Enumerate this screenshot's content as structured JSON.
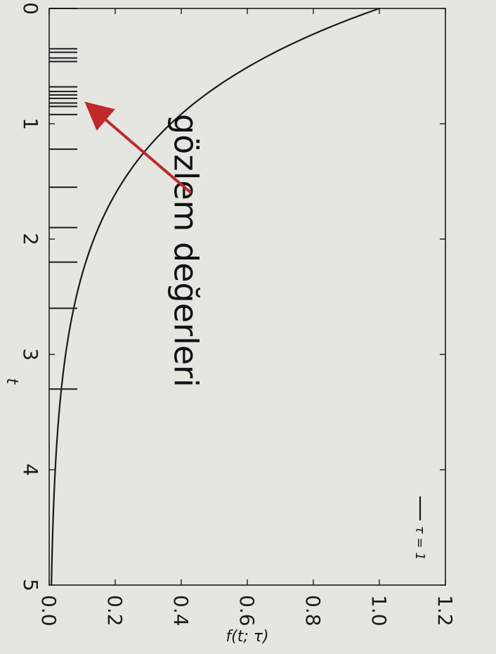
{
  "chart_data": {
    "type": "line",
    "title": "",
    "xlabel": "t",
    "ylabel": "f(t; τ)",
    "xlim": [
      0,
      5
    ],
    "ylim": [
      0,
      1.2
    ],
    "x_ticks": [
      0,
      1,
      2,
      3,
      4,
      5
    ],
    "x_tick_labels": [
      "0",
      "1",
      "2",
      "3",
      "4",
      "5"
    ],
    "y_ticks": [
      0.0,
      0.2,
      0.4,
      0.6,
      0.8,
      1.0,
      1.2
    ],
    "y_tick_labels": [
      "0.0",
      "0.2",
      "0.4",
      "0.6",
      "0.8",
      "1.0",
      "1.2"
    ],
    "grid": false,
    "legend_position": "top-right",
    "series": [
      {
        "name": "τ = 1",
        "function": "exp(-t)",
        "color": "#1a1a1a"
      }
    ],
    "rug_values": [
      0.0,
      0.35,
      0.38,
      0.43,
      0.46,
      0.68,
      0.72,
      0.75,
      0.78,
      0.82,
      0.85,
      0.92,
      1.22,
      1.55,
      1.9,
      2.2,
      2.6,
      3.3
    ],
    "annotation": {
      "text": "gözlem değerleri",
      "color": "#1a1a1a",
      "arrow_color": "#c0282a",
      "arrow_from": [
        1.6,
        0.43
      ],
      "arrow_to": [
        0.84,
        0.12
      ]
    }
  }
}
